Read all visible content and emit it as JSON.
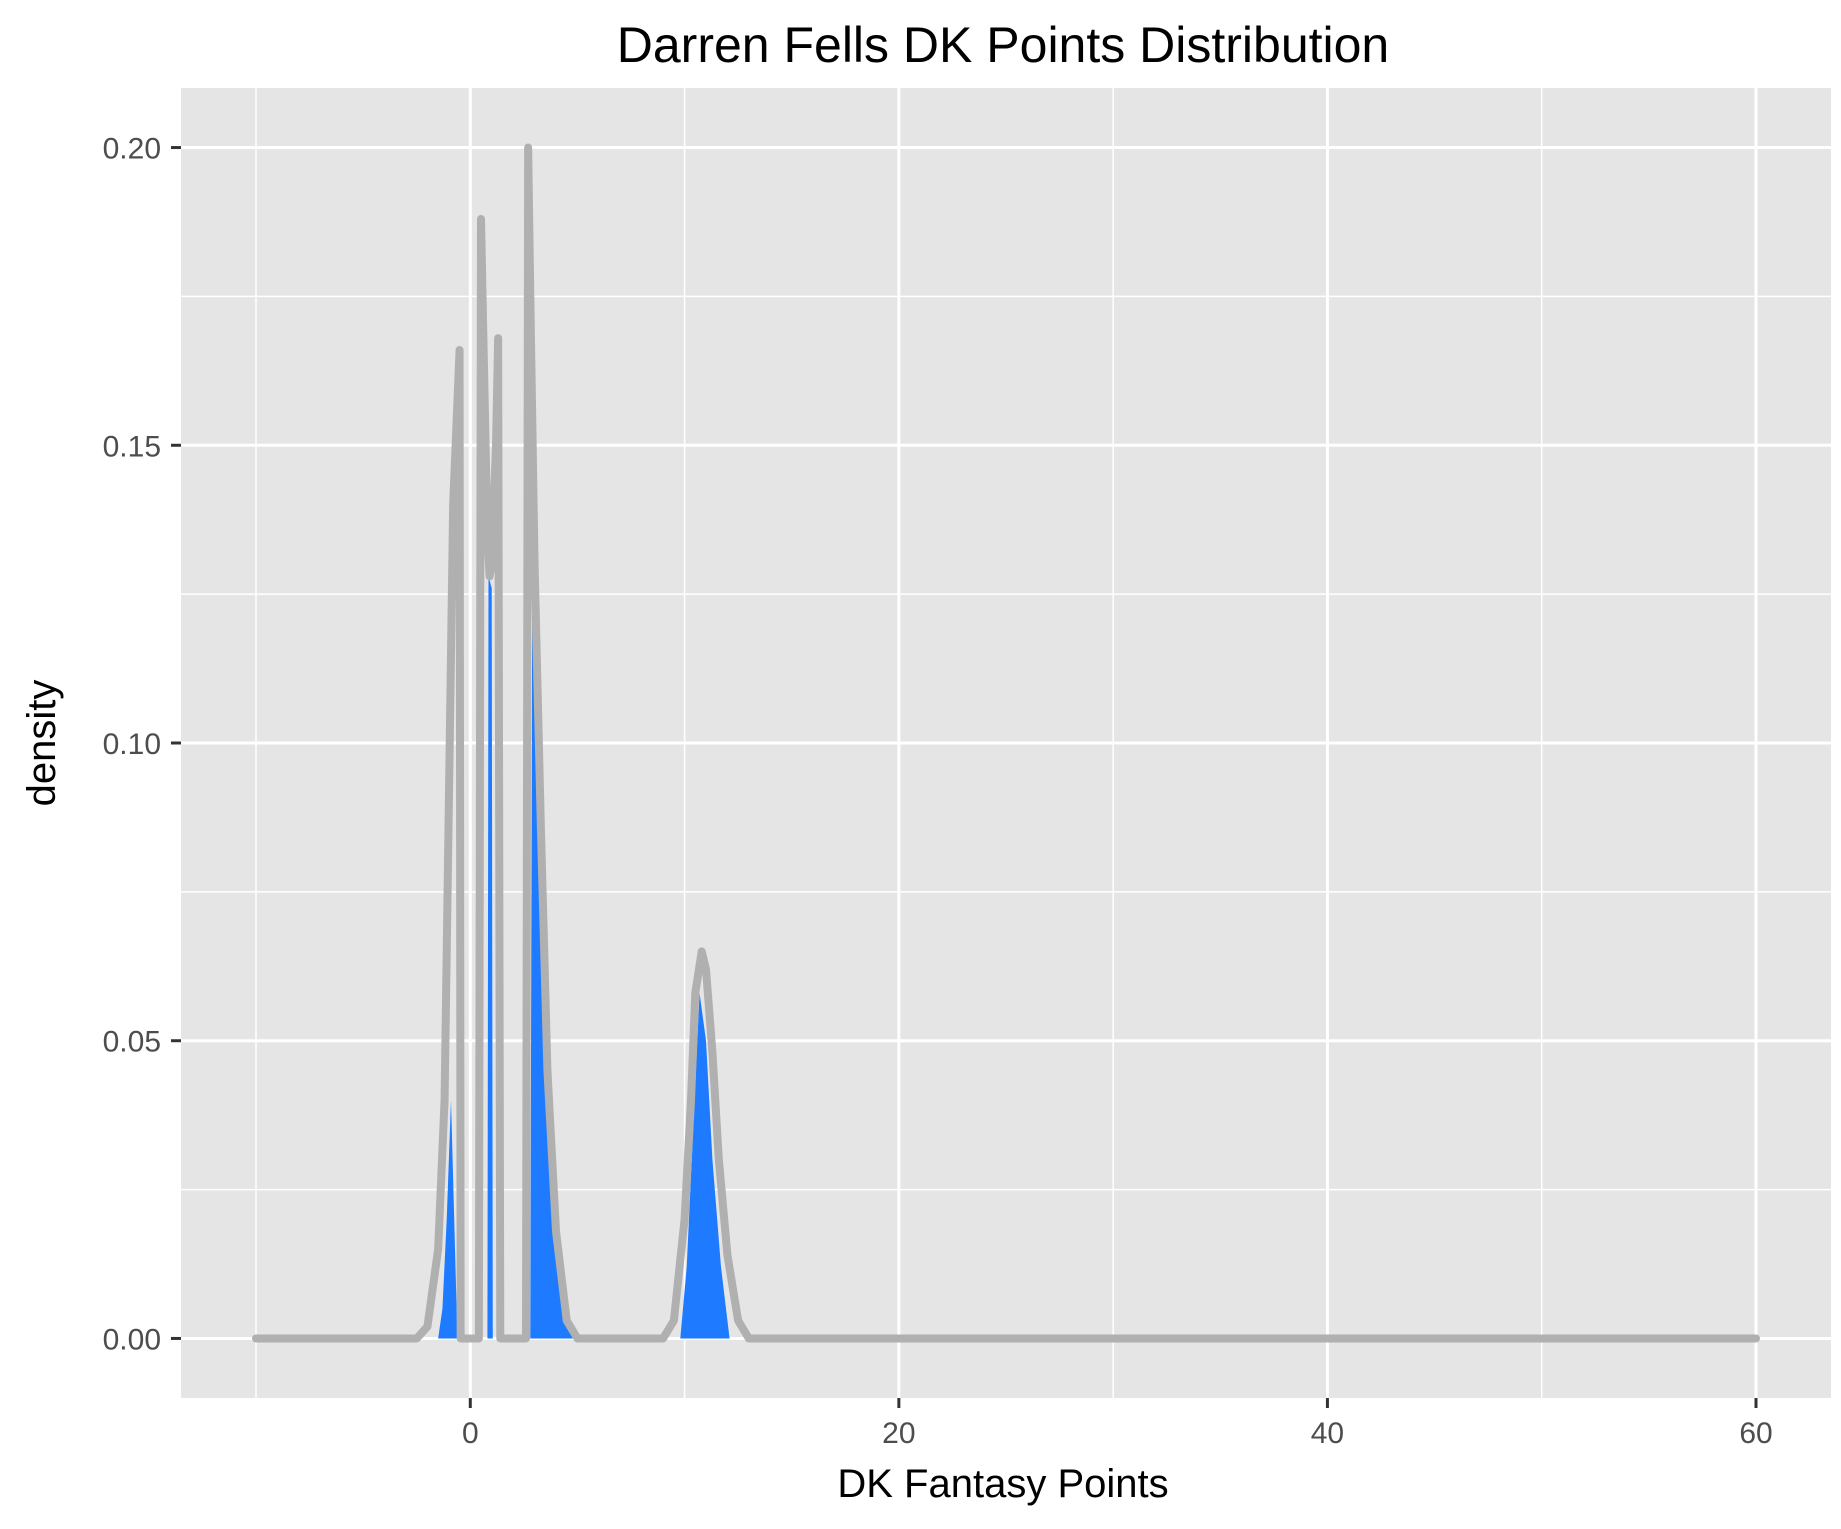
{
  "chart_data": {
    "type": "area",
    "title": "Darren Fells DK Points Distribution",
    "xlabel": "DK Fantasy Points",
    "ylabel": "density",
    "xlim": [
      -13.5,
      63.5
    ],
    "ylim": [
      -0.01,
      0.21
    ],
    "x_ticks": [
      0,
      20,
      40,
      60
    ],
    "x_tick_labels": [
      "0",
      "20",
      "40",
      "60"
    ],
    "y_ticks": [
      0.0,
      0.05,
      0.1,
      0.15,
      0.2
    ],
    "y_tick_labels": [
      "0.00",
      "0.05",
      "0.10",
      "0.15",
      "0.20"
    ],
    "x_minor_ticks": [
      -10,
      10,
      30,
      50
    ],
    "y_minor_ticks": [
      0.025,
      0.075,
      0.125,
      0.175
    ],
    "grid": true,
    "legend": "none",
    "colors": {
      "panel_background": "#e5e5e5",
      "grid_line": "#ffffff",
      "density_line": "#b0b0b0",
      "fill": "#1e7bff",
      "axis_tick": "#333333"
    },
    "density_line": {
      "x": [
        -10,
        -2.5,
        -2.0,
        -1.5,
        -1.2,
        -1.0,
        -0.8,
        -0.5,
        -0.45,
        0.4,
        0.5,
        0.6,
        0.8,
        0.9,
        1.0,
        1.2,
        1.3,
        1.4,
        2.6,
        2.7,
        2.8,
        3.0,
        3.3,
        3.6,
        4.0,
        4.5,
        5.0,
        9.0,
        9.5,
        10.0,
        10.3,
        10.5,
        10.8,
        11.0,
        11.3,
        11.6,
        12.0,
        12.5,
        13.0,
        60
      ],
      "y": [
        0,
        0,
        0.002,
        0.015,
        0.04,
        0.09,
        0.14,
        0.166,
        0,
        0,
        0.188,
        0.17,
        0.135,
        0.128,
        0.13,
        0.15,
        0.168,
        0,
        0,
        0.2,
        0.175,
        0.13,
        0.085,
        0.045,
        0.018,
        0.003,
        0,
        0,
        0.003,
        0.02,
        0.04,
        0.058,
        0.065,
        0.062,
        0.048,
        0.03,
        0.014,
        0.003,
        0,
        0
      ]
    },
    "filled_areas": [
      {
        "x": [
          -1.5,
          -1.3,
          -1.1,
          -0.9,
          -0.6
        ],
        "y": [
          0,
          0.005,
          0.02,
          0.04,
          0.0
        ]
      },
      {
        "x": [
          0.8,
          0.85,
          1.0,
          1.05
        ],
        "y": [
          0,
          0.128,
          0.126,
          0
        ]
      },
      {
        "x": [
          2.8,
          2.9,
          3.1,
          3.4,
          3.8,
          4.3,
          4.8
        ],
        "y": [
          0,
          0.14,
          0.1,
          0.06,
          0.025,
          0.006,
          0
        ]
      },
      {
        "x": [
          9.8,
          10.1,
          10.4,
          10.7,
          11.0,
          11.3,
          11.7,
          12.1
        ],
        "y": [
          0,
          0.012,
          0.035,
          0.058,
          0.05,
          0.03,
          0.012,
          0
        ]
      }
    ]
  }
}
